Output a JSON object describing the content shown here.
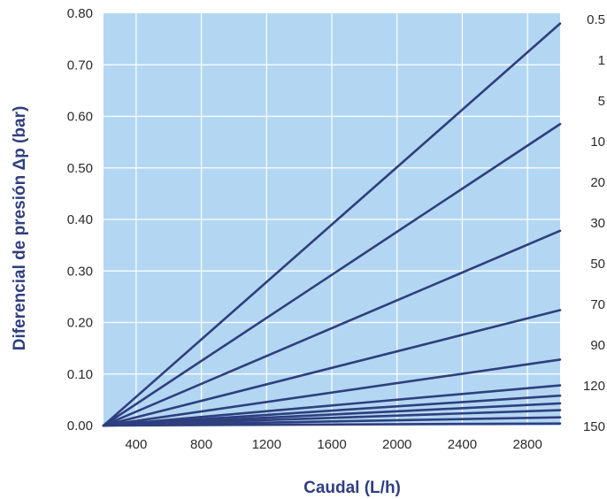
{
  "chart_data": {
    "type": "line",
    "title": "",
    "xlabel": "Caudal (L/h)",
    "ylabel": "Diferencial de presión Δp (bar)",
    "xlim": [
      200,
      3000
    ],
    "ylim": [
      0,
      0.8
    ],
    "x_ticks": [
      "400",
      "800",
      "1200",
      "1600",
      "2000",
      "2400",
      "2800"
    ],
    "y_ticks": [
      "0.00",
      "0.10",
      "0.20",
      "0.30",
      "0.40",
      "0.50",
      "0.60",
      "0.70",
      "0.80"
    ],
    "grid": true,
    "colors": {
      "plot_bg": "#b3d7f2",
      "grid": "#ffffff",
      "line": "#2f3f7e",
      "label": "#2f3f7e",
      "tick": "#2b2b2b"
    },
    "x": [
      200,
      3000
    ],
    "series": [
      {
        "name": "0.5",
        "values": [
          0,
          0.78
        ]
      },
      {
        "name": "1",
        "values": [
          0,
          0.585
        ]
      },
      {
        "name": "5",
        "values": [
          0,
          0.378
        ]
      },
      {
        "name": "10",
        "values": [
          0,
          0.224
        ]
      },
      {
        "name": "20",
        "values": [
          0,
          0.128
        ]
      },
      {
        "name": "30",
        "values": [
          0,
          0.078
        ]
      },
      {
        "name": "50",
        "values": [
          0,
          0.058
        ]
      },
      {
        "name": "70",
        "values": [
          0,
          0.043
        ]
      },
      {
        "name": "90",
        "values": [
          0,
          0.03
        ]
      },
      {
        "name": "120",
        "values": [
          0,
          0.016
        ]
      },
      {
        "name": "150",
        "values": [
          0,
          0.004
        ]
      }
    ],
    "right_labels": [
      "0.5",
      "1",
      "5",
      "10",
      "20",
      "30",
      "50",
      "70",
      "90",
      "120",
      "150"
    ]
  }
}
